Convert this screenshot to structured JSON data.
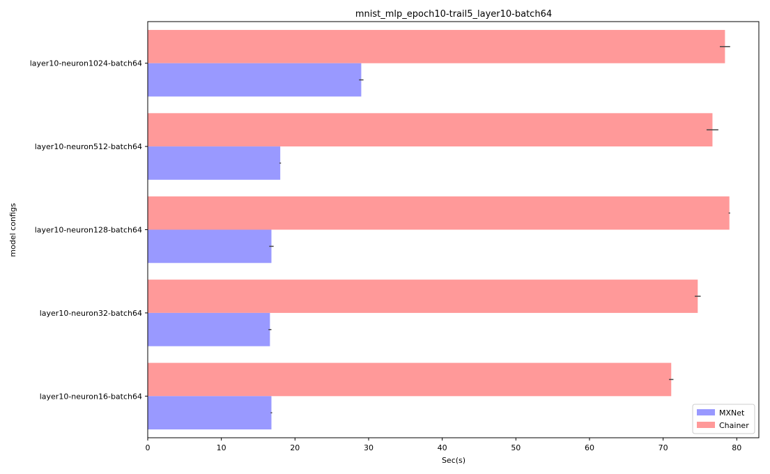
{
  "chart_data": {
    "type": "bar",
    "orientation": "horizontal",
    "title": "mnist_mlp_epoch10-trail5_layer10-batch64",
    "xlabel": "Sec(s)",
    "ylabel": "model configs",
    "xlim": [
      0,
      83
    ],
    "xticks": [
      0,
      10,
      20,
      30,
      40,
      50,
      60,
      70,
      80
    ],
    "grid": false,
    "legend_position": "lower-right",
    "categories": [
      "layer10-neuron1024-batch64",
      "layer10-neuron512-batch64",
      "layer10-neuron128-batch64",
      "layer10-neuron32-batch64",
      "layer10-neuron16-batch64"
    ],
    "series": [
      {
        "name": "MXNet",
        "color": "#9999ff",
        "values": [
          29.0,
          18.0,
          16.8,
          16.6,
          16.8
        ],
        "errors": [
          0.3,
          0.1,
          0.3,
          0.2,
          0.1
        ]
      },
      {
        "name": "Chainer",
        "color": "#ff9999",
        "values": [
          78.4,
          76.7,
          79.0,
          74.7,
          71.1
        ],
        "errors": [
          0.7,
          0.8,
          0.1,
          0.4,
          0.3
        ]
      }
    ]
  }
}
